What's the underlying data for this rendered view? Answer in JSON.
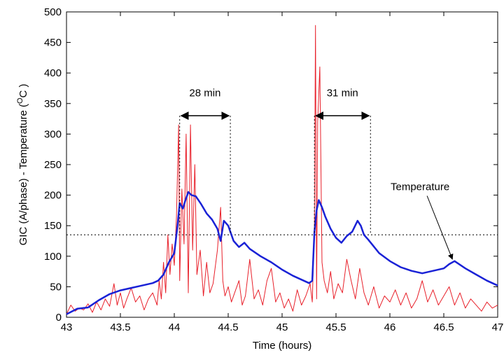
{
  "chart_data": {
    "type": "line",
    "xlabel": "Time (hours)",
    "ylabel_main": "GIC (A/phase) - Temperature (",
    "ylabel_sup": "O",
    "ylabel_tail": "C )",
    "xlim": [
      43,
      47
    ],
    "ylim": [
      0,
      500
    ],
    "xticks": [
      43,
      43.5,
      44,
      44.5,
      45,
      45.5,
      46,
      46.5,
      47
    ],
    "xtick_labels": [
      "43",
      "43.5",
      "44",
      "44.5",
      "45",
      "45.5",
      "46",
      "46.5",
      "47"
    ],
    "yticks": [
      0,
      50,
      100,
      150,
      200,
      250,
      300,
      350,
      400,
      450,
      500
    ],
    "ytick_labels": [
      "0",
      "50",
      "100",
      "150",
      "200",
      "250",
      "300",
      "350",
      "400",
      "450",
      "500"
    ],
    "grid": false,
    "threshold": 135,
    "series": [
      {
        "role": "gic",
        "color": "#e8202a",
        "x": [
          43.0,
          43.04,
          43.08,
          43.12,
          43.16,
          43.2,
          43.24,
          43.28,
          43.32,
          43.36,
          43.4,
          43.44,
          43.47,
          43.5,
          43.53,
          43.56,
          43.6,
          43.64,
          43.68,
          43.72,
          43.76,
          43.8,
          43.84,
          43.86,
          43.88,
          43.9,
          43.92,
          43.94,
          43.96,
          43.98,
          44.0,
          44.02,
          44.04,
          44.05,
          44.07,
          44.09,
          44.11,
          44.13,
          44.15,
          44.17,
          44.19,
          44.21,
          44.24,
          44.27,
          44.3,
          44.33,
          44.36,
          44.4,
          44.43,
          44.45,
          44.47,
          44.5,
          44.53,
          44.56,
          44.6,
          44.63,
          44.66,
          44.7,
          44.74,
          44.78,
          44.82,
          44.86,
          44.9,
          44.94,
          44.98,
          45.02,
          45.06,
          45.1,
          45.14,
          45.18,
          45.22,
          45.26,
          45.28,
          45.3,
          45.31,
          45.32,
          45.33,
          45.35,
          45.37,
          45.39,
          45.42,
          45.45,
          45.48,
          45.52,
          45.56,
          45.6,
          45.64,
          45.68,
          45.72,
          45.76,
          45.8,
          45.85,
          45.9,
          45.95,
          46.0,
          46.05,
          46.1,
          46.15,
          46.2,
          46.25,
          46.3,
          46.35,
          46.4,
          46.45,
          46.5,
          46.55,
          46.6,
          46.65,
          46.7,
          46.75,
          46.8,
          46.85,
          46.9,
          46.95,
          47.0
        ],
        "y": [
          5,
          20,
          10,
          15,
          12,
          22,
          8,
          25,
          12,
          30,
          18,
          55,
          20,
          40,
          15,
          30,
          48,
          25,
          35,
          12,
          30,
          40,
          20,
          60,
          30,
          90,
          40,
          135,
          70,
          120,
          85,
          165,
          315,
          60,
          210,
          120,
          300,
          40,
          315,
          110,
          250,
          70,
          110,
          35,
          90,
          40,
          55,
          110,
          180,
          60,
          35,
          50,
          25,
          40,
          60,
          20,
          35,
          95,
          30,
          45,
          20,
          60,
          80,
          25,
          40,
          15,
          30,
          10,
          45,
          20,
          35,
          55,
          25,
          150,
          478,
          30,
          320,
          410,
          90,
          60,
          40,
          75,
          30,
          55,
          40,
          95,
          60,
          30,
          80,
          40,
          20,
          50,
          15,
          35,
          25,
          45,
          20,
          40,
          15,
          30,
          60,
          25,
          45,
          20,
          35,
          50,
          20,
          40,
          15,
          30,
          20,
          10,
          25,
          15,
          20
        ]
      },
      {
        "role": "temperature",
        "color": "#1a22d6",
        "x": [
          43.0,
          43.1,
          43.2,
          43.3,
          43.4,
          43.5,
          43.6,
          43.7,
          43.8,
          43.85,
          43.9,
          43.95,
          44.0,
          44.03,
          44.05,
          44.08,
          44.1,
          44.13,
          44.16,
          44.2,
          44.25,
          44.3,
          44.35,
          44.4,
          44.43,
          44.46,
          44.5,
          44.55,
          44.6,
          44.65,
          44.7,
          44.8,
          44.9,
          45.0,
          45.1,
          45.2,
          45.25,
          45.28,
          45.3,
          45.32,
          45.34,
          45.37,
          45.4,
          45.45,
          45.5,
          45.55,
          45.6,
          45.65,
          45.7,
          45.73,
          45.76,
          45.8,
          45.85,
          45.9,
          46.0,
          46.1,
          46.2,
          46.3,
          46.4,
          46.5,
          46.55,
          46.6,
          46.7,
          46.8,
          46.9,
          47.0
        ],
        "y": [
          5,
          14,
          16,
          28,
          38,
          44,
          48,
          52,
          56,
          60,
          70,
          90,
          105,
          150,
          187,
          178,
          190,
          205,
          200,
          198,
          185,
          170,
          160,
          145,
          125,
          158,
          150,
          125,
          115,
          122,
          112,
          100,
          90,
          78,
          68,
          60,
          56,
          60,
          140,
          175,
          192,
          180,
          165,
          145,
          130,
          122,
          133,
          140,
          158,
          150,
          135,
          127,
          116,
          105,
          92,
          82,
          76,
          72,
          76,
          80,
          87,
          92,
          80,
          70,
          60,
          52
        ]
      }
    ],
    "annotations": [
      {
        "id": "first",
        "label": "28 min",
        "x_start": 44.05,
        "x_end": 44.52,
        "y_arrow": 330,
        "y_label": 355,
        "y_bottom": 135
      },
      {
        "id": "second",
        "label": "31 min",
        "x_start": 45.3,
        "x_end": 45.82,
        "y_arrow": 330,
        "y_label": 355,
        "y_bottom": 135
      },
      {
        "id": "temperature",
        "label": "Temperature",
        "text_x": 46.28,
        "text_y": 208,
        "arrow_to_x": 46.58,
        "arrow_to_y": 95
      }
    ]
  }
}
